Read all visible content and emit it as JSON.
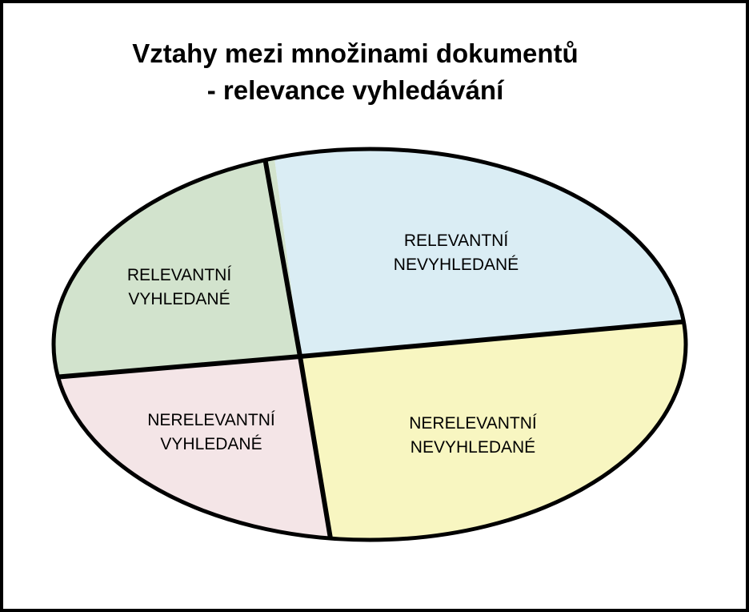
{
  "title": {
    "line1": "Vztahy mezi množinami dokumentů",
    "line2": "- relevance vyhledávání"
  },
  "regions": [
    {
      "id": "relevant-retrieved",
      "line1": "RELEVANTNÍ",
      "line2": "VYHLEDANÉ",
      "color": "#d2e3cd"
    },
    {
      "id": "relevant-not-retrieved",
      "line1": "RELEVANTNÍ",
      "line2": "NEVYHLEDANÉ",
      "color": "#daedf4"
    },
    {
      "id": "nonrelevant-retrieved",
      "line1": "NERELEVANTNÍ",
      "line2": "VYHLEDANÉ",
      "color": "#f4e5e7"
    },
    {
      "id": "nonrelevant-not-retrieved",
      "line1": "NERELEVANTNÍ",
      "line2": "NEVYHLEDANÉ",
      "color": "#f8f6c1"
    }
  ]
}
